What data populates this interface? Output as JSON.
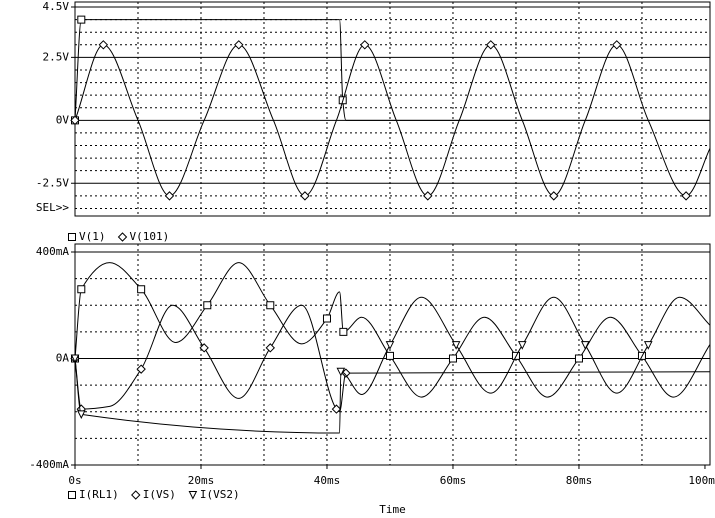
{
  "chart_data": [
    {
      "type": "line",
      "sel_label": "SEL>>",
      "xlim": [
        0,
        100.8
      ],
      "ylim": [
        -3.8,
        4.7
      ],
      "yticks": [
        {
          "value": 4.5,
          "label": "4.5V"
        },
        {
          "value": 2.5,
          "label": "2.5V"
        },
        {
          "value": 0,
          "label": "0V"
        },
        {
          "value": -2.5,
          "label": "-2.5V"
        }
      ],
      "xgrid": [
        10,
        20,
        30,
        40,
        50,
        60,
        70,
        80,
        90
      ],
      "ygrid": [
        -3.5,
        -3,
        -2,
        -1.5,
        -1,
        -0.5,
        0.5,
        1,
        1.5,
        2,
        3,
        3.5,
        4
      ],
      "grid": true,
      "series": [
        {
          "name": "V(1)",
          "color": "#000000",
          "marker": "square",
          "x": [
            0,
            1,
            42,
            42.5,
            43,
            101
          ],
          "values": [
            0,
            4,
            4,
            0.8,
            0,
            0
          ]
        },
        {
          "name": "V(101)",
          "color": "#000000",
          "marker": "diamond",
          "x": [
            0,
            4.5,
            10,
            15,
            20.5,
            26,
            31.5,
            36.5,
            41.5,
            46,
            51,
            56,
            61,
            66,
            71,
            76,
            81,
            86,
            91,
            97,
            101
          ],
          "values": [
            0,
            3,
            0,
            -3,
            0,
            3,
            0,
            -3,
            0,
            3,
            0,
            -3,
            0,
            3,
            0,
            -3,
            0,
            3,
            0,
            -3,
            -1
          ]
        }
      ]
    },
    {
      "type": "line",
      "xlabel": "Time",
      "xlim": [
        0,
        100.8
      ],
      "ylim": [
        -400,
        430
      ],
      "xticks": [
        {
          "value": 0,
          "label": "0s"
        },
        {
          "value": 20,
          "label": "20ms"
        },
        {
          "value": 40,
          "label": "40ms"
        },
        {
          "value": 60,
          "label": "60ms"
        },
        {
          "value": 80,
          "label": "80ms"
        },
        {
          "value": 100,
          "label": "100ms"
        }
      ],
      "yticks": [
        {
          "value": 400,
          "label": "400mA"
        },
        {
          "value": 0,
          "label": "0A"
        },
        {
          "value": -400,
          "label": "-400mA"
        }
      ],
      "xgrid": [
        10,
        20,
        30,
        40,
        50,
        60,
        70,
        80,
        90
      ],
      "ygrid": [
        -300,
        -200,
        -100,
        100,
        200,
        300
      ],
      "grid": true,
      "series": [
        {
          "name": "I(RL1)",
          "color": "#000000",
          "marker": "square",
          "x": [
            0,
            1,
            5.5,
            10.5,
            16,
            21,
            26,
            31,
            36,
            40,
            42,
            42.6,
            45.5,
            50,
            55,
            60,
            65,
            70,
            75,
            80,
            85,
            90,
            95,
            101
          ],
          "values": [
            0,
            260,
            360,
            260,
            60,
            200,
            360,
            200,
            55,
            150,
            250,
            100,
            155,
            10,
            -145,
            0,
            155,
            10,
            -145,
            0,
            155,
            10,
            -145,
            60
          ]
        },
        {
          "name": "I(VS)",
          "color": "#000000",
          "marker": "diamond",
          "x": [
            0,
            1,
            5.5,
            10.5,
            15.5,
            20.5,
            26,
            31,
            36,
            41.5,
            42,
            43,
            101
          ],
          "values": [
            0,
            -190,
            -180,
            -40,
            200,
            40,
            -150,
            40,
            200,
            -190,
            -200,
            -55,
            -50
          ]
        },
        {
          "name": "I(VS2)",
          "color": "#000000",
          "marker": "triangle",
          "x": [
            0,
            1,
            42,
            42.2,
            45.5,
            50,
            55,
            60.5,
            66,
            71,
            76,
            81,
            86,
            91,
            96,
            101
          ],
          "values": [
            0,
            -210,
            -280,
            -50,
            -135,
            50,
            230,
            50,
            -130,
            50,
            230,
            50,
            -130,
            50,
            230,
            120
          ]
        }
      ]
    }
  ]
}
